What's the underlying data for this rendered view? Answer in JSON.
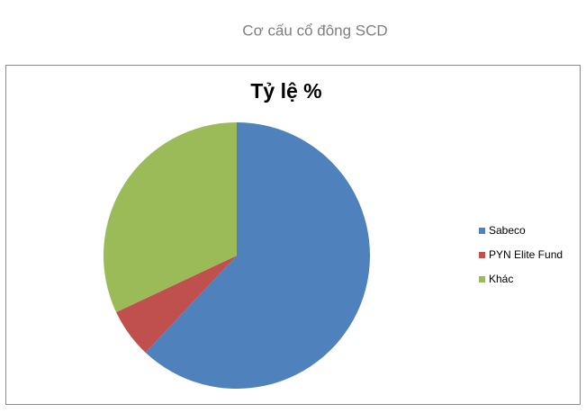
{
  "page_title": "Cơ cấu cổ đông SCD",
  "chart_data": {
    "type": "pie",
    "title": "Tỷ lệ %",
    "categories": [
      "Sabeco",
      "PYN Elite Fund",
      "Khác"
    ],
    "values": [
      62,
      6,
      32
    ],
    "colors": [
      "#4f81bd",
      "#c0504d",
      "#9bbb59"
    ],
    "legend": "right"
  }
}
